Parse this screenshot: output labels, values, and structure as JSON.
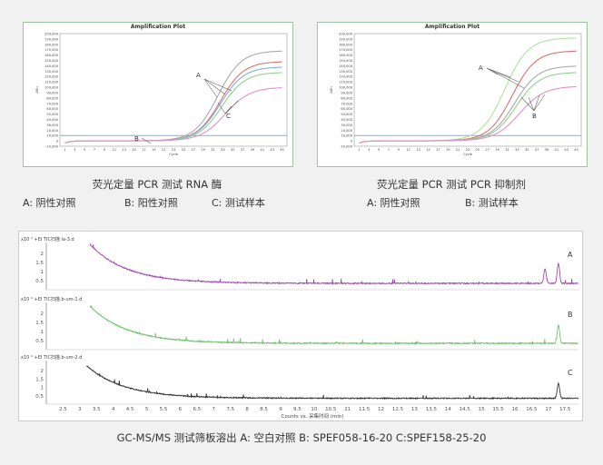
{
  "left_plot": {
    "title": "Amplification Plot",
    "caption": "荧光定量 PCR 测试 RNA 酶",
    "legend": [
      {
        "label": "A:  阴性对照"
      },
      {
        "label": "B: 阳性对照"
      },
      {
        "label": "C: 测试样本"
      }
    ],
    "markers": {
      "A": "A",
      "B": "B",
      "C": "C"
    }
  },
  "right_plot": {
    "title": "Amplification Plot",
    "caption": "荧光定量 PCR 测试 PCR 抑制剂",
    "legend": [
      {
        "label": "A:  阴性对照"
      },
      {
        "label": "B: 测试样本"
      }
    ],
    "markers": {
      "A": "A",
      "B": "B"
    }
  },
  "gc": {
    "caption": "GC-MS/MS 测试筛板溶出    A:  空白对照    B:  SPEF058-16-20    C:SPEF158-25-20",
    "xlabel": "Counts vs. 采集时间 (min)",
    "traces": [
      {
        "header": "x10 ⁴  +EI TIC扫描 la-3.d",
        "marker": "A",
        "color": "#a04cb0"
      },
      {
        "header": "x10 ⁴  +EI TIC扫描 b-um-1.d",
        "marker": "B",
        "color": "#6ec26e"
      },
      {
        "header": "x10 ⁴  +EI TIC扫描 b-um-2.d",
        "marker": "C",
        "color": "#333333"
      }
    ]
  },
  "chart_data": [
    {
      "type": "line",
      "title": "Amplification Plot",
      "xlabel": "Cycle",
      "ylabel": "ΔRn",
      "x_ticks": [
        1,
        3,
        5,
        7,
        9,
        11,
        13,
        15,
        17,
        19,
        21,
        23,
        25,
        27,
        29,
        31,
        33,
        35,
        37,
        39,
        41,
        43,
        45
      ],
      "xlim": [
        0,
        46
      ],
      "ylim": [
        -10000,
        200000
      ],
      "y_ticks": [
        "200,000",
        "190,000",
        "180,000",
        "170,000",
        "160,000",
        "150,000",
        "140,000",
        "130,000",
        "120,000",
        "110,000",
        "100,000",
        "90,000",
        "80,000",
        "70,000",
        "60,000",
        "50,000",
        "40,000",
        "30,000",
        "20,000",
        "10,000",
        "0",
        "-10,000"
      ],
      "threshold": 10000,
      "series": [
        {
          "color": "#aaaaaa",
          "plateau": 168000,
          "midpoint": 32,
          "slope": 0.42
        },
        {
          "color": "#e07070",
          "plateau": 148000,
          "midpoint": 32.5,
          "slope": 0.42
        },
        {
          "color": "#7fb0e0",
          "plateau": 138000,
          "midpoint": 32.5,
          "slope": 0.42
        },
        {
          "color": "#8fd08f",
          "plateau": 128000,
          "midpoint": 32.8,
          "slope": 0.42
        },
        {
          "color": "#e48ec8",
          "plateau": 100000,
          "midpoint": 33.5,
          "slope": 0.4
        }
      ]
    },
    {
      "type": "line",
      "title": "Amplification Plot",
      "xlabel": "Cycle",
      "ylabel": "ΔRn",
      "x_ticks": [
        1,
        3,
        5,
        7,
        9,
        11,
        13,
        15,
        17,
        19,
        21,
        23,
        25,
        27,
        29,
        31,
        33,
        35,
        37,
        39,
        41,
        43,
        45
      ],
      "xlim": [
        0,
        46
      ],
      "ylim": [
        -10000,
        200000
      ],
      "y_ticks": [
        "200,000",
        "190,000",
        "180,000",
        "170,000",
        "160,000",
        "150,000",
        "140,000",
        "130,000",
        "120,000",
        "110,000",
        "100,000",
        "90,000",
        "80,000",
        "70,000",
        "60,000",
        "50,000",
        "40,000",
        "30,000",
        "20,000",
        "10,000",
        "0",
        "-10,000"
      ],
      "threshold": 10000,
      "series": [
        {
          "color": "#b0e0a0",
          "plateau": 192000,
          "midpoint": 30.5,
          "slope": 0.42
        },
        {
          "color": "#e07070",
          "plateau": 168000,
          "midpoint": 32,
          "slope": 0.42
        },
        {
          "color": "#aaaaaa",
          "plateau": 140000,
          "midpoint": 32.5,
          "slope": 0.42
        },
        {
          "color": "#8fd08f",
          "plateau": 128000,
          "midpoint": 32.8,
          "slope": 0.42
        },
        {
          "color": "#e48ec8",
          "plateau": 102000,
          "midpoint": 33.5,
          "slope": 0.4
        }
      ]
    },
    {
      "type": "line",
      "xlabel": "Counts vs. 采集时间 (min)",
      "x_ticks": [
        "2.5",
        "3",
        "3.5",
        "4",
        "4.5",
        "5",
        "5.5",
        "6",
        "6.5",
        "7",
        "7.5",
        "8",
        "8.5",
        "9",
        "9.5",
        "10",
        "10.5",
        "11",
        "11.5",
        "12",
        "12.5",
        "13",
        "13.5",
        "14",
        "14.5",
        "15",
        "15.5",
        "16",
        "16.5",
        "17",
        "17.5"
      ],
      "xlim": [
        2,
        17.9
      ],
      "y_ticks": [
        "2",
        "1.5",
        "1",
        "0.5"
      ],
      "ylim": [
        0,
        2.6
      ],
      "series": [
        {
          "name": "A",
          "start_x": 3.3,
          "start_y": 2.5,
          "baseline": 0.35,
          "decay": 0.9,
          "peaks": [
            [
              16.9,
              0.8
            ],
            [
              17.3,
              1.1
            ]
          ]
        },
        {
          "name": "B",
          "start_x": 3.3,
          "start_y": 2.4,
          "baseline": 0.35,
          "decay": 0.9,
          "peaks": [
            [
              17.3,
              1.0
            ]
          ]
        },
        {
          "name": "C",
          "start_x": 3.2,
          "start_y": 2.3,
          "baseline": 0.35,
          "decay": 0.9,
          "peaks": [
            [
              17.3,
              0.9
            ]
          ]
        }
      ]
    }
  ]
}
